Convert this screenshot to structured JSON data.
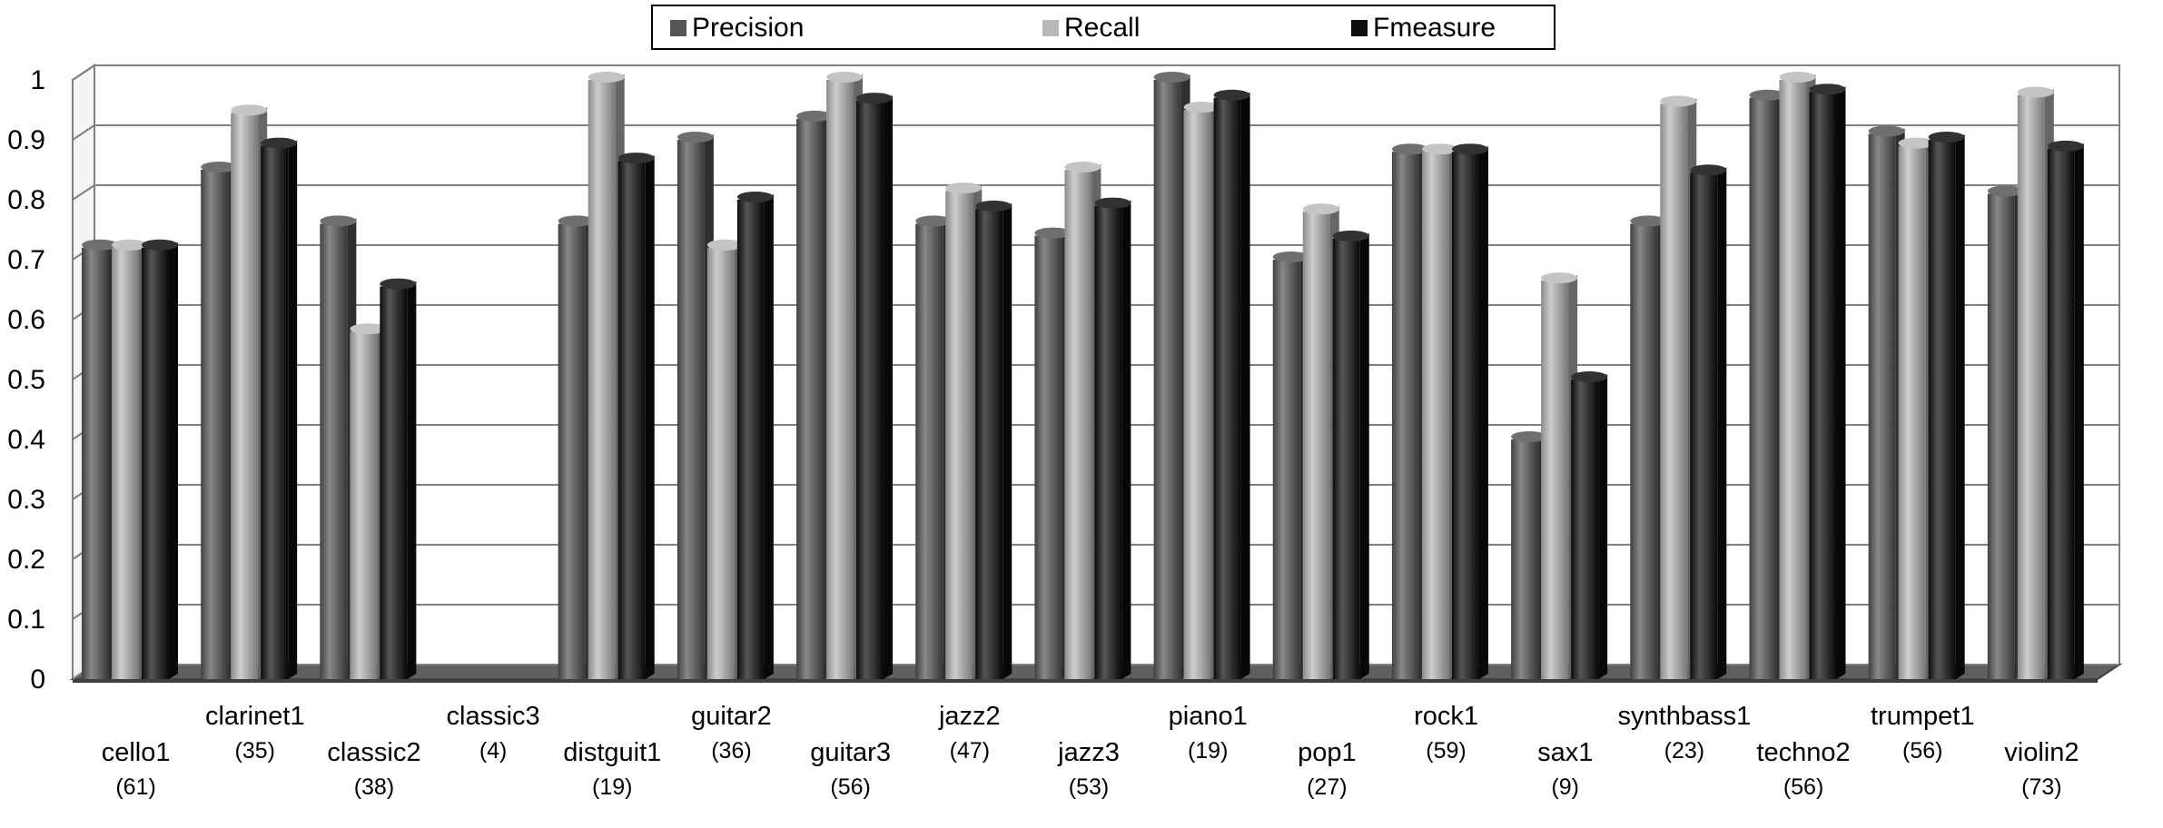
{
  "colors": {
    "precision": "#555555",
    "recall": "#b9b9b9",
    "fmeasure": "#0e0e0e",
    "grid": "#808080",
    "floor": "#606060"
  },
  "chart_data": {
    "type": "bar",
    "legend_position": "top-center",
    "grid": true,
    "ylim": [
      0,
      1
    ],
    "yticks": [
      "0",
      "0.1",
      "0.2",
      "0.3",
      "0.4",
      "0.5",
      "0.6",
      "0.7",
      "0.8",
      "0.9",
      "1"
    ],
    "categories": [
      {
        "name": "cello1",
        "count": "(61)"
      },
      {
        "name": "clarinet1",
        "count": "(35)"
      },
      {
        "name": "classic2",
        "count": "(38)"
      },
      {
        "name": "classic3",
        "count": "(4)"
      },
      {
        "name": "distguit1",
        "count": "(19)"
      },
      {
        "name": "guitar2",
        "count": "(36)"
      },
      {
        "name": "guitar3",
        "count": "(56)"
      },
      {
        "name": "jazz2",
        "count": "(47)"
      },
      {
        "name": "jazz3",
        "count": "(53)"
      },
      {
        "name": "piano1",
        "count": "(19)"
      },
      {
        "name": "pop1",
        "count": "(27)"
      },
      {
        "name": "rock1",
        "count": "(59)"
      },
      {
        "name": "sax1",
        "count": "(9)"
      },
      {
        "name": "synthbass1",
        "count": "(23)"
      },
      {
        "name": "techno2",
        "count": "(56)"
      },
      {
        "name": "trumpet1",
        "count": "(56)"
      },
      {
        "name": "violin2",
        "count": "(73)"
      }
    ],
    "series": [
      {
        "name": "Precision",
        "color_key": "precision",
        "values": [
          0.72,
          0.85,
          0.76,
          0,
          0.76,
          0.9,
          0.935,
          0.76,
          0.74,
          1.0,
          0.7,
          0.88,
          0.4,
          0.76,
          0.97,
          0.91,
          0.81
        ]
      },
      {
        "name": "Recall",
        "color_key": "recall",
        "values": [
          0.72,
          0.945,
          0.58,
          0,
          1.0,
          0.72,
          1.0,
          0.815,
          0.85,
          0.95,
          0.78,
          0.88,
          0.665,
          0.96,
          1.0,
          0.89,
          0.975
        ]
      },
      {
        "name": "Fmeasure",
        "color_key": "fmeasure",
        "values": [
          0.72,
          0.89,
          0.655,
          0,
          0.865,
          0.8,
          0.965,
          0.785,
          0.79,
          0.97,
          0.735,
          0.88,
          0.5,
          0.845,
          0.98,
          0.9,
          0.885
        ]
      }
    ]
  }
}
